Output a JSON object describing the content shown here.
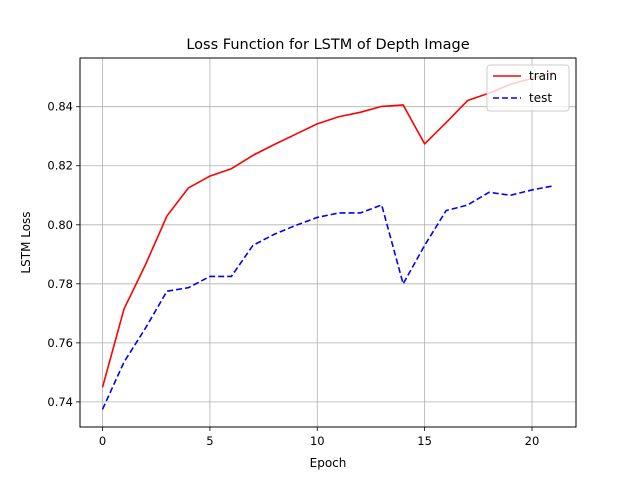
{
  "chart_data": {
    "type": "line",
    "title": "Loss Function for LSTM of Depth Image",
    "xlabel": "Epoch",
    "ylabel": "LSTM Loss",
    "xlim": [
      -1.05,
      22.05
    ],
    "ylim": [
      0.7315,
      0.8565
    ],
    "xticks": [
      0,
      5,
      10,
      15,
      20
    ],
    "xtick_labels": [
      "0",
      "5",
      "10",
      "15",
      "20"
    ],
    "yticks": [
      0.74,
      0.76,
      0.78,
      0.8,
      0.82,
      0.84
    ],
    "ytick_labels": [
      "0.74",
      "0.76",
      "0.78",
      "0.80",
      "0.82",
      "0.84"
    ],
    "grid": true,
    "legend_position": "top-right",
    "x": [
      0,
      1,
      2,
      3,
      4,
      5,
      6,
      7,
      8,
      9,
      10,
      11,
      12,
      13,
      14,
      15,
      16,
      17,
      18,
      19,
      20,
      21
    ],
    "series": [
      {
        "name": "train",
        "color": "#ff0000",
        "style": "solid",
        "values": [
          0.745,
          0.7715,
          0.7865,
          0.803,
          0.8125,
          0.8165,
          0.819,
          0.8235,
          0.8272,
          0.8307,
          0.8342,
          0.8366,
          0.8381,
          0.8401,
          0.8406,
          0.8274,
          0.8346,
          0.8421,
          0.8446,
          0.8476,
          0.8496,
          0.8516
        ]
      },
      {
        "name": "test",
        "color": "#0000ff",
        "style": "dashed",
        "values": [
          0.7375,
          0.7535,
          0.765,
          0.7775,
          0.7787,
          0.7825,
          0.7825,
          0.793,
          0.7968,
          0.7998,
          0.8025,
          0.804,
          0.804,
          0.8067,
          0.78,
          0.793,
          0.8048,
          0.8067,
          0.811,
          0.81,
          0.8118,
          0.8132
        ]
      }
    ]
  }
}
